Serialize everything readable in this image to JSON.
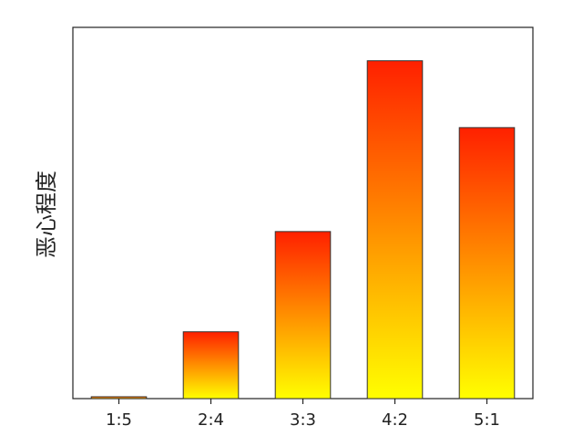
{
  "chart_data": {
    "type": "bar",
    "ylabel": "恶心程度",
    "categories": [
      "1:5",
      "2:4",
      "3:3",
      "4:2",
      "5:1"
    ],
    "values": [
      0.5,
      18,
      45,
      91,
      73
    ],
    "color": [
      "#ff2000",
      "#ffff00"
    ],
    "ylim": [
      0,
      100
    ]
  }
}
